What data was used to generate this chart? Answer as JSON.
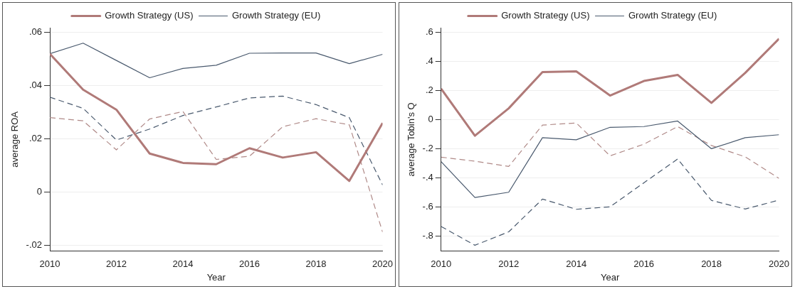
{
  "chart_data": [
    {
      "type": "line",
      "xlabel": "Year",
      "ylabel": "average ROA",
      "x": [
        2010,
        2011,
        2012,
        2013,
        2014,
        2015,
        2016,
        2017,
        2018,
        2019,
        2020
      ],
      "xlim": [
        2010,
        2020
      ],
      "xticks": [
        2010,
        2012,
        2014,
        2016,
        2018,
        2020
      ],
      "ylim": [
        -0.0222,
        0.0618
      ],
      "yticks": [
        {
          "value": -0.02,
          "label": "-.02"
        },
        {
          "value": 0,
          "label": "0"
        },
        {
          "value": 0.02,
          "label": ".02"
        },
        {
          "value": 0.04,
          "label": ".04"
        },
        {
          "value": 0.06,
          "label": ".06"
        }
      ],
      "grid": "y",
      "legend": "top",
      "marker": "none",
      "series": [
        {
          "name": "Growth Strategy (US)",
          "color": "#b07a78",
          "values": [
            0.052,
            0.0385,
            0.031,
            0.0145,
            0.011,
            0.0105,
            0.0165,
            0.013,
            0.015,
            0.0042,
            0.026
          ]
        },
        {
          "name": "Growth Strategy (EU)",
          "color": "#4a5a6e",
          "values": [
            0.052,
            0.056,
            0.0495,
            0.043,
            0.0465,
            0.0477,
            0.0522,
            0.0523,
            0.0523,
            0.0483,
            0.0518
          ]
        },
        {
          "color": "#b08a88",
          "line_style": "dashed",
          "values": [
            0.028,
            0.0268,
            0.0159,
            0.0275,
            0.0303,
            0.0123,
            0.0135,
            0.0246,
            0.0276,
            0.0253,
            -0.015
          ]
        },
        {
          "color": "#4a5a6e",
          "line_style": "dashed",
          "values": [
            0.0357,
            0.0315,
            0.0196,
            0.0237,
            0.0288,
            0.032,
            0.0354,
            0.0361,
            0.0329,
            0.028,
            0.0027
          ]
        }
      ]
    },
    {
      "type": "line",
      "xlabel": "Year",
      "ylabel": "average Tobin's Q",
      "x": [
        2010,
        2011,
        2012,
        2013,
        2014,
        2015,
        2016,
        2017,
        2018,
        2019,
        2020
      ],
      "xlim": [
        2010,
        2020
      ],
      "xticks": [
        2010,
        2012,
        2014,
        2016,
        2018,
        2020
      ],
      "ylim": [
        -0.902,
        0.633
      ],
      "yticks": [
        {
          "value": -0.8,
          "label": "-.8"
        },
        {
          "value": -0.6,
          "label": "-.6"
        },
        {
          "value": -0.4,
          "label": "-.4"
        },
        {
          "value": -0.2,
          "label": "-.2"
        },
        {
          "value": 0,
          "label": "0"
        },
        {
          "value": 0.2,
          "label": ".2"
        },
        {
          "value": 0.4,
          "label": ".4"
        },
        {
          "value": 0.6,
          "label": ".6"
        }
      ],
      "grid": "y",
      "legend": "top",
      "marker": "none",
      "series": [
        {
          "name": "Growth Strategy (US)",
          "color": "#b07a78",
          "values": [
            0.214,
            -0.109,
            0.079,
            0.328,
            0.333,
            0.167,
            0.267,
            0.309,
            0.117,
            0.323,
            0.557
          ]
        },
        {
          "name": "Growth Strategy (EU)",
          "color": "#4a5a6e",
          "values": [
            -0.287,
            -0.533,
            -0.497,
            -0.122,
            -0.137,
            -0.051,
            -0.046,
            -0.008,
            -0.198,
            -0.122,
            -0.102
          ]
        },
        {
          "color": "#b08a88",
          "line_style": "dashed",
          "values": [
            -0.256,
            -0.284,
            -0.32,
            -0.036,
            -0.021,
            -0.247,
            -0.167,
            -0.046,
            -0.176,
            -0.254,
            -0.402
          ]
        },
        {
          "color": "#4a5a6e",
          "line_style": "dashed",
          "values": [
            -0.732,
            -0.861,
            -0.769,
            -0.544,
            -0.614,
            -0.597,
            -0.432,
            -0.269,
            -0.553,
            -0.612,
            -0.551
          ]
        }
      ]
    }
  ]
}
